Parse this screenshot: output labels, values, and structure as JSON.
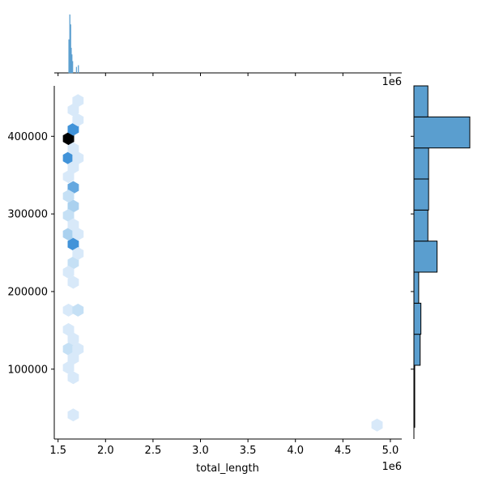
{
  "chart_data": {
    "type": "hexbin-jointplot",
    "xlabel": "total_length",
    "ylabel": "",
    "x_offset_label": "1e6",
    "y_offset_label": "1e6",
    "xlim": [
      1.46,
      5.12
    ],
    "ylim": [
      10000,
      465000
    ],
    "x_ticks": [
      1.5,
      2.0,
      2.5,
      3.0,
      3.5,
      4.0,
      4.5,
      5.0
    ],
    "x_tick_labels": [
      "1.5",
      "2.0",
      "2.5",
      "3.0",
      "3.5",
      "4.0",
      "4.5",
      "5.0"
    ],
    "y_ticks": [
      100000,
      200000,
      300000,
      400000
    ],
    "y_tick_labels": [
      "100000",
      "200000",
      "300000",
      "400000"
    ],
    "colors": {
      "bar": "#5a9ecf",
      "bar_edge": "#000000",
      "hex_max": "#000000",
      "hex_mid": "#3a8fd8",
      "hex_low": "#eaf3fd"
    },
    "hex_cells": [
      {
        "x": 1.61,
        "y": 397000,
        "count": 10
      },
      {
        "x": 1.66,
        "y": 409000,
        "count": 6
      },
      {
        "x": 1.61,
        "y": 372000,
        "count": 6
      },
      {
        "x": 1.66,
        "y": 334000,
        "count": 5
      },
      {
        "x": 1.66,
        "y": 261000,
        "count": 6
      },
      {
        "x": 1.61,
        "y": 274000,
        "count": 3
      },
      {
        "x": 1.66,
        "y": 310000,
        "count": 3
      },
      {
        "x": 1.61,
        "y": 323000,
        "count": 2
      },
      {
        "x": 1.61,
        "y": 298000,
        "count": 2
      },
      {
        "x": 1.66,
        "y": 237000,
        "count": 2
      },
      {
        "x": 1.66,
        "y": 434000,
        "count": 1
      },
      {
        "x": 1.71,
        "y": 421000,
        "count": 1
      },
      {
        "x": 1.71,
        "y": 446000,
        "count": 1
      },
      {
        "x": 1.66,
        "y": 384000,
        "count": 1
      },
      {
        "x": 1.71,
        "y": 372000,
        "count": 1
      },
      {
        "x": 1.66,
        "y": 360000,
        "count": 1
      },
      {
        "x": 1.61,
        "y": 348000,
        "count": 1
      },
      {
        "x": 1.66,
        "y": 286000,
        "count": 1
      },
      {
        "x": 1.71,
        "y": 274000,
        "count": 1
      },
      {
        "x": 1.71,
        "y": 249000,
        "count": 1
      },
      {
        "x": 1.61,
        "y": 225000,
        "count": 1
      },
      {
        "x": 1.66,
        "y": 212000,
        "count": 1
      },
      {
        "x": 1.61,
        "y": 176000,
        "count": 1
      },
      {
        "x": 1.71,
        "y": 176000,
        "count": 2
      },
      {
        "x": 1.61,
        "y": 151000,
        "count": 1
      },
      {
        "x": 1.66,
        "y": 139000,
        "count": 1
      },
      {
        "x": 1.61,
        "y": 126000,
        "count": 2
      },
      {
        "x": 1.71,
        "y": 126000,
        "count": 1
      },
      {
        "x": 1.66,
        "y": 114000,
        "count": 1
      },
      {
        "x": 1.61,
        "y": 102000,
        "count": 1
      },
      {
        "x": 1.66,
        "y": 89000,
        "count": 1
      },
      {
        "x": 1.66,
        "y": 41000,
        "count": 1
      },
      {
        "x": 4.86,
        "y": 28000,
        "count": 1
      }
    ],
    "top_histogram": [
      {
        "x0": 1.61,
        "x1": 1.62,
        "count": 40
      },
      {
        "x0": 1.62,
        "x1": 1.628,
        "count": 70
      },
      {
        "x0": 1.628,
        "x1": 1.636,
        "count": 58
      },
      {
        "x0": 1.636,
        "x1": 1.642,
        "count": 30
      },
      {
        "x0": 1.642,
        "x1": 1.65,
        "count": 22
      },
      {
        "x0": 1.65,
        "x1": 1.657,
        "count": 14
      },
      {
        "x0": 1.69,
        "x1": 1.697,
        "count": 7
      },
      {
        "x0": 1.71,
        "x1": 1.718,
        "count": 9
      }
    ],
    "right_histogram": [
      {
        "y0": 25000,
        "y1": 65000,
        "count": 1
      },
      {
        "y0": 65000,
        "y1": 105000,
        "count": 1
      },
      {
        "y0": 105000,
        "y1": 145000,
        "count": 17
      },
      {
        "y0": 145000,
        "y1": 185000,
        "count": 19
      },
      {
        "y0": 185000,
        "y1": 225000,
        "count": 13
      },
      {
        "y0": 225000,
        "y1": 265000,
        "count": 63
      },
      {
        "y0": 265000,
        "y1": 305000,
        "count": 38
      },
      {
        "y0": 305000,
        "y1": 345000,
        "count": 40
      },
      {
        "y0": 345000,
        "y1": 385000,
        "count": 40
      },
      {
        "y0": 385000,
        "y1": 425000,
        "count": 152
      },
      {
        "y0": 425000,
        "y1": 465000,
        "count": 38
      }
    ]
  }
}
